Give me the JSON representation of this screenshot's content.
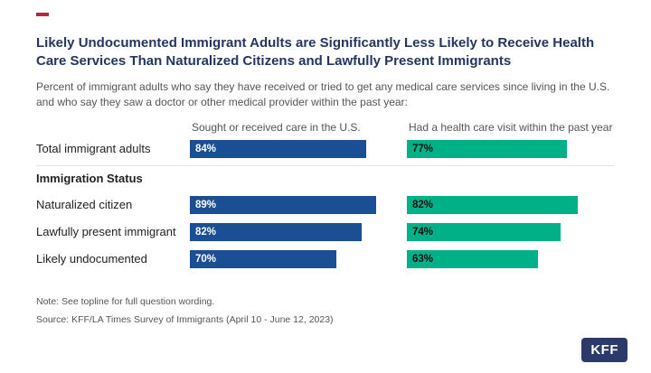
{
  "header": {
    "title": "Likely Undocumented Immigrant Adults are Significantly Less Likely to Receive Health Care Services Than Naturalized Citizens and Lawfully Present Immigrants",
    "subtitle": "Percent of immigrant adults who say they have received or tried to get any medical care services since living in the U.S. and who say they saw a doctor or other medical provider within the past year:"
  },
  "chart_data": {
    "type": "bar",
    "orientation": "horizontal",
    "categories": [
      "Total immigrant adults",
      "Naturalized citizen",
      "Lawfully present immigrant",
      "Likely undocumented"
    ],
    "group_header": "Immigration Status",
    "series": [
      {
        "name": "Sought or received care in the U.S.",
        "color": "#1b4f94",
        "values": [
          84,
          89,
          82,
          70
        ],
        "labels": [
          "84%",
          "89%",
          "82%",
          "70%"
        ]
      },
      {
        "name": "Had a health care visit within the past year",
        "color": "#00b187",
        "values": [
          77,
          82,
          74,
          63
        ],
        "labels": [
          "77%",
          "82%",
          "74%",
          "63%"
        ]
      }
    ],
    "xlim": [
      0,
      100
    ],
    "value_labels": "inside-start",
    "legend_position": "column-headers"
  },
  "footer": {
    "note": "Note: See topline for full question wording.",
    "source": "Source: KFF/LA Times Survey of Immigrants (April 10 - June 12, 2023)",
    "logo": "KFF"
  },
  "colors": {
    "bar_blue": "#1b4f94",
    "bar_green": "#00b187",
    "title_navy": "#24365f",
    "accent_red": "#b22740",
    "logo_background": "#2b3a6b"
  }
}
